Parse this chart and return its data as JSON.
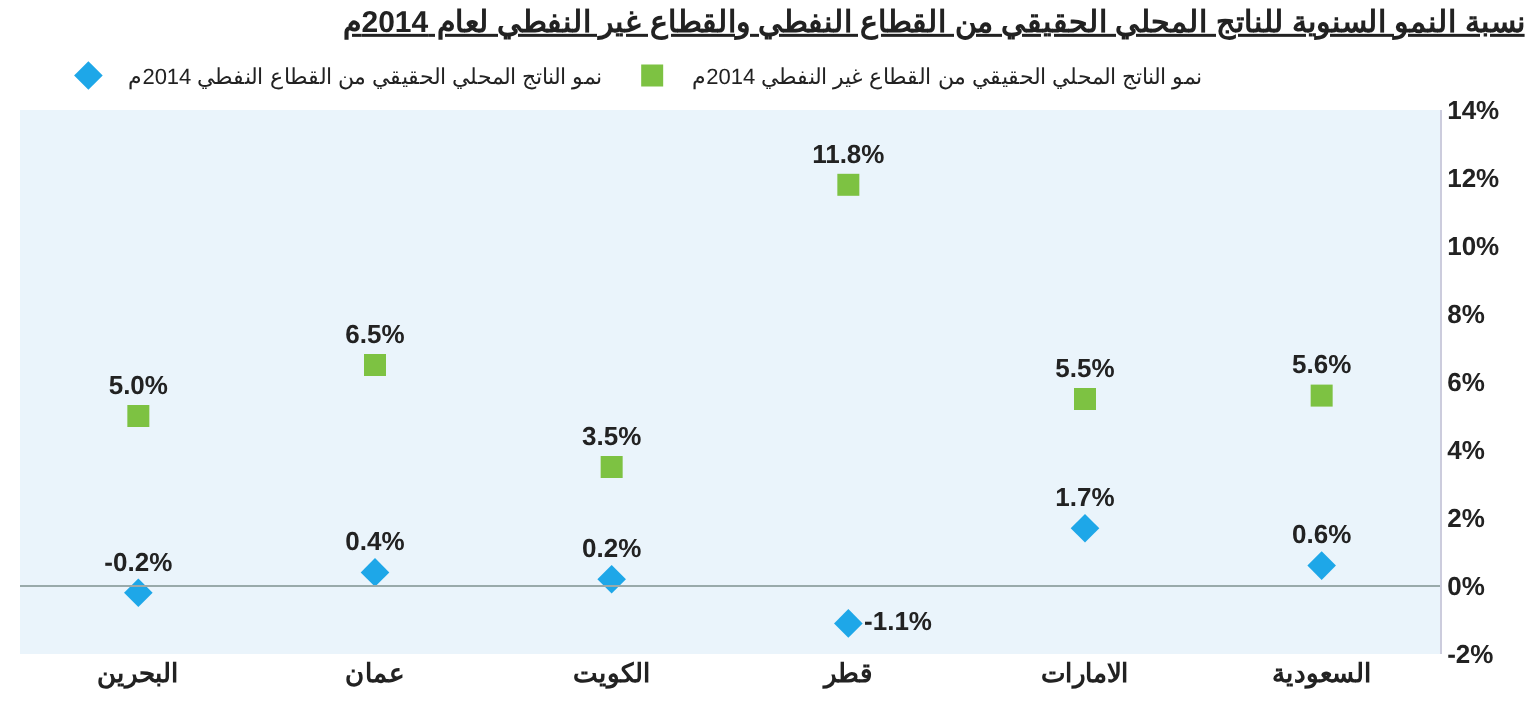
{
  "chart_data": {
    "type": "scatter",
    "title": "نسبة النمو السنوية للناتج المحلي الحقيقي من القطاع النفطي والقطاع غير النفطي لعام 2014م",
    "categories": [
      "البحرين",
      "عمان",
      "الكويت",
      "قطر",
      "الامارات",
      "السعودية"
    ],
    "series": [
      {
        "name": "نمو الناتج المحلي الحقيقي من القطاع النفطي 2014م",
        "color": "#1ea7e8",
        "marker": "diamond",
        "values": [
          -0.2,
          0.4,
          0.2,
          -1.1,
          1.7,
          0.6
        ],
        "value_labels": [
          "-0.2%",
          "0.4%",
          "0.2%",
          "-1.1%",
          "1.7%",
          "0.6%"
        ]
      },
      {
        "name": "نمو الناتج المحلي الحقيقي من القطاع غير النفطي 2014م",
        "color": "#7dc242",
        "marker": "square",
        "values": [
          5.0,
          6.5,
          3.5,
          11.8,
          5.5,
          5.6
        ],
        "value_labels": [
          "5.0%",
          "6.5%",
          "3.5%",
          "11.8%",
          "5.5%",
          "5.6%"
        ]
      }
    ],
    "ylim": [
      -2,
      14
    ],
    "yticks": [
      {
        "value": -2,
        "label": "-2%"
      },
      {
        "value": 0,
        "label": "0%"
      },
      {
        "value": 2,
        "label": "2%"
      },
      {
        "value": 4,
        "label": "4%"
      },
      {
        "value": 6,
        "label": "6%"
      },
      {
        "value": 8,
        "label": "8%"
      },
      {
        "value": 10,
        "label": "10%"
      },
      {
        "value": 12,
        "label": "12%"
      },
      {
        "value": 14,
        "label": "14%"
      }
    ],
    "grid": false,
    "ref_lines": [
      {
        "axis": "y",
        "value": 0,
        "color": "#99aaaa"
      }
    ],
    "legend": "top"
  }
}
